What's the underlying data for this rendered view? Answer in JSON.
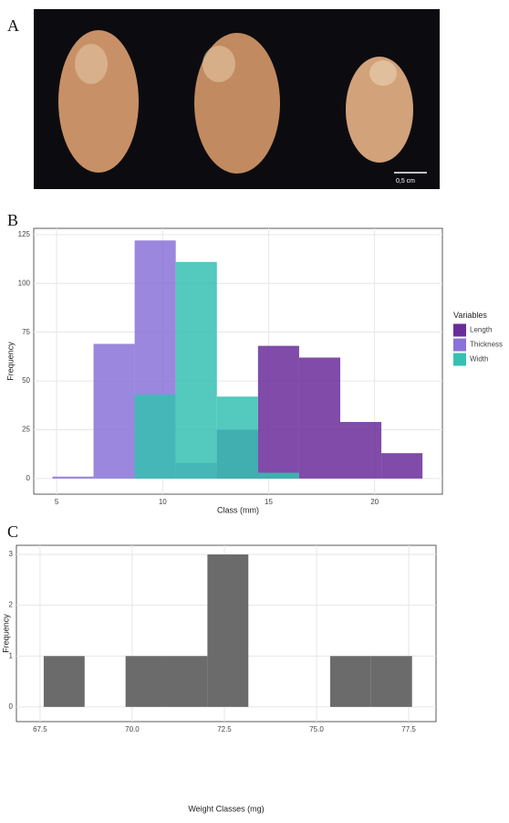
{
  "photo": {
    "panel": "A",
    "scale_bar": "0,5 cm"
  },
  "chart_data": [
    {
      "type": "histogram",
      "panel": "B",
      "x_label": "Class (mm)",
      "y_label": "Frequency",
      "bins": [
        4.8,
        6.74,
        8.68,
        10.62,
        12.56,
        14.5,
        16.44,
        18.38,
        20.32,
        22.26
      ],
      "series": [
        {
          "name": "Length",
          "color": "#6a2c9a",
          "values": [
            0,
            0,
            0,
            0,
            25,
            68,
            62,
            29,
            13
          ]
        },
        {
          "name": "Thickness",
          "color": "#8a72d8",
          "values": [
            1,
            69,
            122,
            8,
            0,
            0,
            0,
            0,
            0
          ]
        },
        {
          "name": "Width",
          "color": "#36c0b2",
          "values": [
            0,
            0,
            43,
            111,
            42,
            3,
            0,
            0,
            0
          ]
        }
      ],
      "xlim": [
        3.92,
        23.2
      ],
      "ylim": [
        -8,
        128.2
      ],
      "xticks": [
        5,
        10,
        15,
        20
      ],
      "yticks": [
        0,
        25,
        50,
        75,
        100,
        125
      ],
      "grid": true,
      "legend_title": "Variables",
      "legend": "right"
    },
    {
      "type": "histogram",
      "panel": "C",
      "x_label": "Weight Classes (mg)",
      "y_label": "Frequency",
      "bins": [
        67.6,
        68.71,
        69.82,
        70.93,
        72.04,
        73.15,
        74.26,
        75.37,
        76.48,
        77.59
      ],
      "series": [
        {
          "name": null,
          "color": "#6b6b6b",
          "values": [
            1,
            0,
            1,
            1,
            3,
            0,
            0,
            1,
            1
          ]
        }
      ],
      "xlim": [
        66.86,
        78.24
      ],
      "ylim": [
        -0.29,
        3.18
      ],
      "xticks": [
        {
          "value": 67.5,
          "label": "67.5"
        },
        {
          "value": 70,
          "label": "70.0"
        },
        {
          "value": 72.5,
          "label": "72.5"
        },
        {
          "value": 75,
          "label": "75.0"
        },
        {
          "value": 77.5,
          "label": "77.5"
        }
      ],
      "yticks": [
        0,
        1,
        2,
        3
      ],
      "grid": true,
      "legend": null
    }
  ]
}
